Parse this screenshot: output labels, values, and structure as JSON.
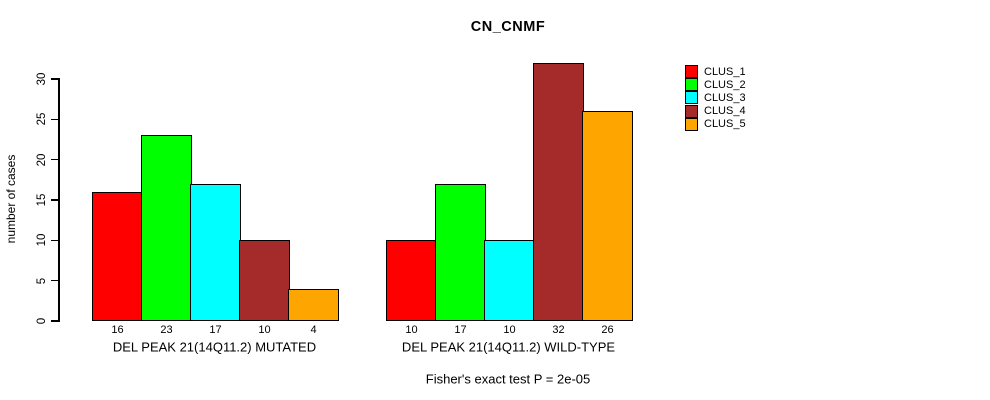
{
  "title": "CN_CNMF",
  "caption": "Fisher's exact test P = 2e-05",
  "y_axis": {
    "label": "number of cases"
  },
  "legend": [
    {
      "label": "CLUS_1",
      "color": "#FF0000"
    },
    {
      "label": "CLUS_2",
      "color": "#00FF00"
    },
    {
      "label": "CLUS_3",
      "color": "#00FFFF"
    },
    {
      "label": "CLUS_4",
      "color": "#A52A2A"
    },
    {
      "label": "CLUS_5",
      "color": "#FFA500"
    }
  ],
  "chart_data": {
    "type": "bar",
    "title": "CN_CNMF",
    "xlabel": "",
    "ylabel": "number of cases",
    "ylim": [
      0,
      32
    ],
    "yticks": [
      0,
      5,
      10,
      15,
      20,
      25,
      30
    ],
    "grid": false,
    "legend_position": "right",
    "categories": [
      "DEL PEAK 21(14Q11.2) MUTATED",
      "DEL PEAK 21(14Q11.2) WILD-TYPE"
    ],
    "series": [
      {
        "name": "CLUS_1",
        "color": "#FF0000",
        "values": [
          16,
          10
        ]
      },
      {
        "name": "CLUS_2",
        "color": "#00FF00",
        "values": [
          23,
          17
        ]
      },
      {
        "name": "CLUS_3",
        "color": "#00FFFF",
        "values": [
          17,
          10
        ]
      },
      {
        "name": "CLUS_4",
        "color": "#A52A2A",
        "values": [
          10,
          32
        ]
      },
      {
        "name": "CLUS_5",
        "color": "#FFA500",
        "values": [
          4,
          26
        ]
      }
    ],
    "bar_value_labels": [
      [
        16,
        23,
        17,
        10,
        4
      ],
      [
        10,
        17,
        10,
        32,
        26
      ]
    ],
    "annotation": "Fisher's exact test P = 2e-05"
  }
}
